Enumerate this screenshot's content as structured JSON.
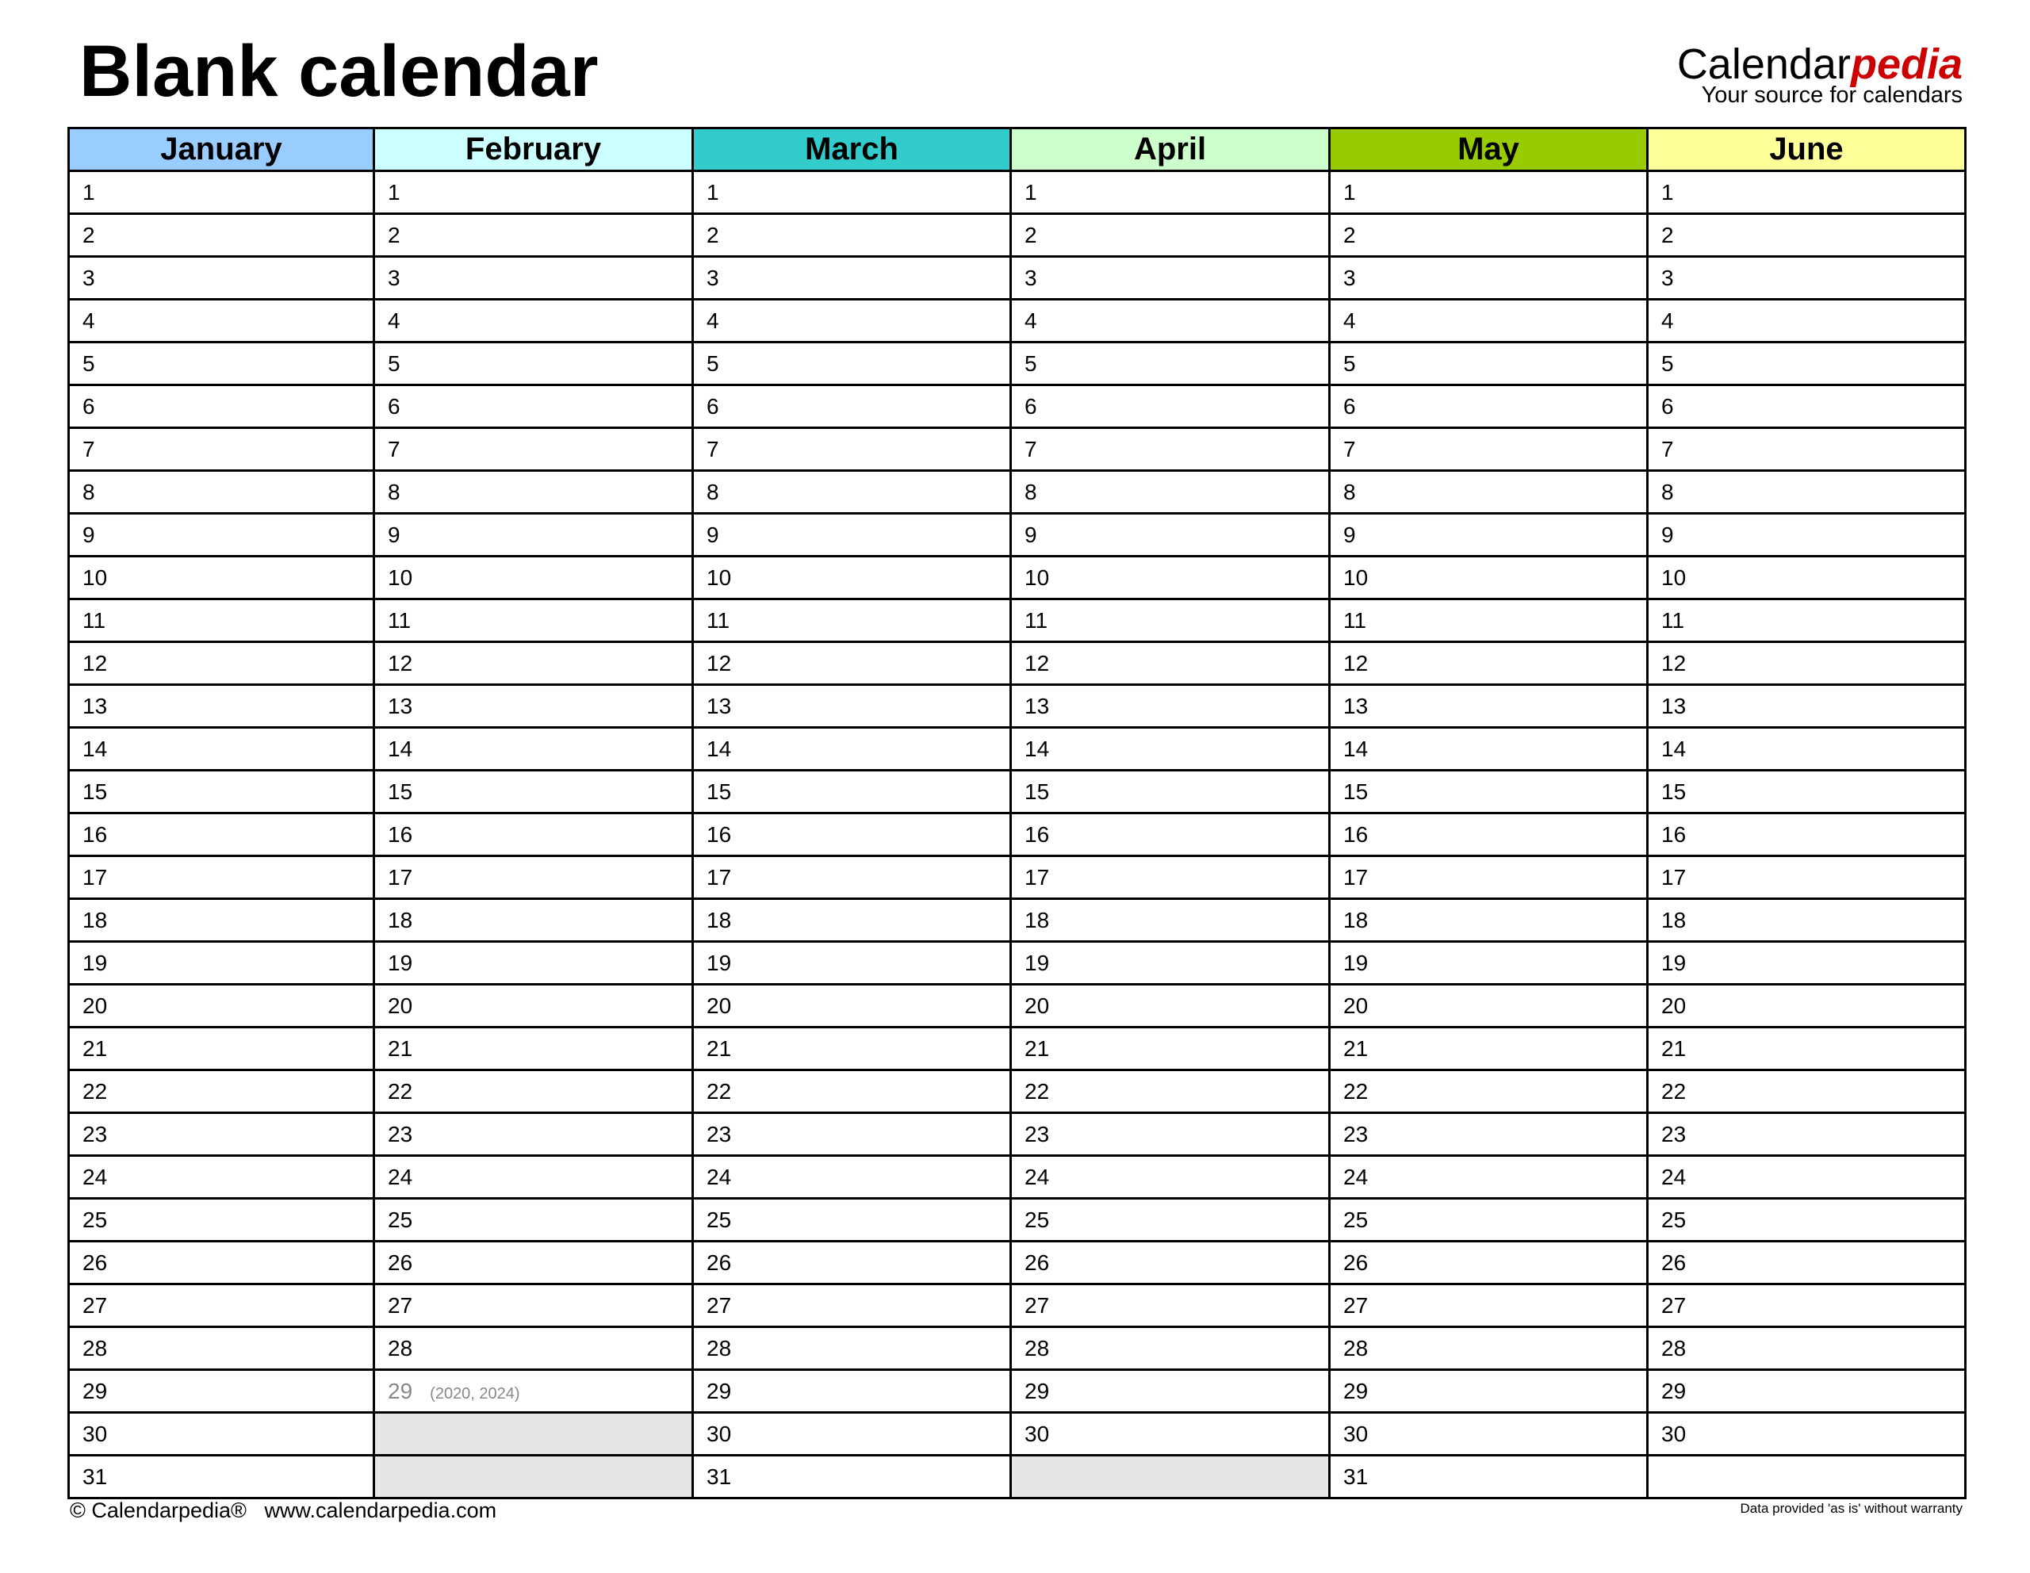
{
  "title": "Blank calendar",
  "logo": {
    "brand_main": "Calendar",
    "brand_accent": "pedia",
    "tagline": "Your source for calendars"
  },
  "colors": {
    "logo_accent": "#cc0000",
    "unavailable_day": "#e6e6e6"
  },
  "months": [
    {
      "name": "January",
      "color": "#99ccff",
      "days": 31
    },
    {
      "name": "February",
      "color": "#ccffff",
      "days": 28,
      "leap_day": {
        "day": "29",
        "note": "(2020, 2024)"
      }
    },
    {
      "name": "March",
      "color": "#33cccc",
      "days": 31
    },
    {
      "name": "April",
      "color": "#ccffcc",
      "days": 30
    },
    {
      "name": "May",
      "color": "#99cc00",
      "days": 31
    },
    {
      "name": "June",
      "color": "#ffff99",
      "days": 30
    }
  ],
  "footer": {
    "copyright": "© Calendarpedia®",
    "website": "www.calendarpedia.com",
    "disclaimer": "Data provided 'as is' without warranty"
  }
}
